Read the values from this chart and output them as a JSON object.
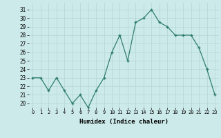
{
  "x": [
    0,
    1,
    2,
    3,
    4,
    5,
    6,
    7,
    8,
    9,
    10,
    11,
    12,
    13,
    14,
    15,
    16,
    17,
    18,
    19,
    20,
    21,
    22,
    23
  ],
  "y": [
    23,
    23,
    21.5,
    23,
    21.5,
    20,
    21,
    19.5,
    21.5,
    23,
    26,
    28,
    25,
    29.5,
    30,
    31,
    29.5,
    29,
    28,
    28,
    28,
    26.5,
    24,
    21
  ],
  "line_color": "#2e7d6e",
  "marker": "+",
  "bg_color": "#cdeaea",
  "grid_color": "#b8d8d8",
  "xlabel": "Humidex (Indice chaleur)",
  "ylabel_ticks": [
    20,
    21,
    22,
    23,
    24,
    25,
    26,
    27,
    28,
    29,
    30,
    31
  ],
  "ylim": [
    19.5,
    31.8
  ],
  "xlim": [
    -0.5,
    23.5
  ]
}
